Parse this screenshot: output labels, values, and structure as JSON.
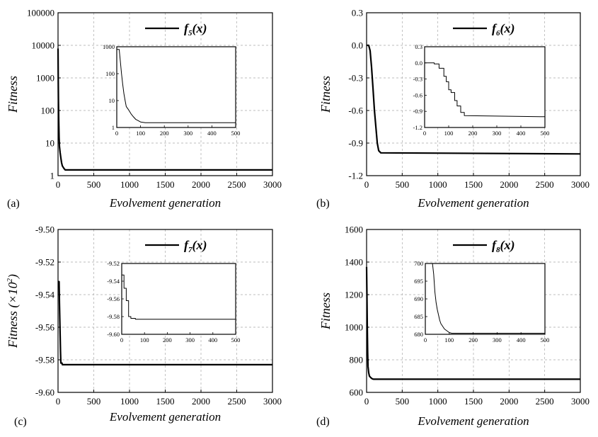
{
  "chart_data": [
    {
      "id": "a",
      "type": "line",
      "panel_label": "(a)",
      "xlabel": "Evolvement generation",
      "ylabel": "Fitness",
      "ylabel_sup": "",
      "ylabel_tail": "",
      "legend": {
        "base": "f",
        "sub": "5",
        "tail": "(x)",
        "position": "top-right"
      },
      "yscale": "log",
      "xlim": [
        0,
        3000
      ],
      "ylim": [
        1,
        100000
      ],
      "xticks": [
        0,
        500,
        1000,
        1500,
        2000,
        2500,
        3000
      ],
      "yticks": [
        1,
        10,
        100,
        1000,
        10000,
        100000
      ],
      "ytick_labels": [
        "1",
        "10",
        "100",
        "1000",
        "10000",
        "100000"
      ],
      "grid": true,
      "series": [
        {
          "x": [
            0,
            3,
            6,
            10,
            15,
            20,
            30,
            40,
            50,
            60,
            80,
            100,
            150,
            3000
          ],
          "y": [
            8000,
            1000,
            200,
            50,
            15,
            8,
            5,
            3.5,
            2.5,
            2,
            1.7,
            1.5,
            1.5,
            1.5
          ]
        }
      ],
      "inset": {
        "xlim": [
          0,
          500
        ],
        "ylim": [
          1,
          1000
        ],
        "yscale": "log",
        "xticks": [
          0,
          100,
          200,
          300,
          400,
          500
        ],
        "yticks": [
          1,
          10,
          100,
          1000
        ],
        "ytick_labels": [
          "1",
          "10",
          "100",
          "1000"
        ],
        "series": [
          {
            "x": [
              0,
              10,
              15,
              20,
              25,
              30,
              35,
              40,
              50,
              60,
              70,
              80,
              90,
              100,
              120,
              500
            ],
            "y": [
              800,
              800,
              300,
              100,
              40,
              18,
              10,
              6,
              4.5,
              3.2,
              2.5,
              2,
              1.8,
              1.6,
              1.5,
              1.5
            ]
          }
        ]
      }
    },
    {
      "id": "b",
      "type": "line",
      "panel_label": "(b)",
      "xlabel": "Evolvement generation",
      "ylabel": "Fitness",
      "ylabel_sup": "",
      "ylabel_tail": "",
      "legend": {
        "base": "f",
        "sub": "6",
        "tail": "(x)",
        "position": "top-right"
      },
      "yscale": "linear",
      "xlim": [
        0,
        3000
      ],
      "ylim": [
        -1.2,
        0.3
      ],
      "xticks": [
        0,
        500,
        1000,
        1500,
        2000,
        2500,
        3000
      ],
      "yticks": [
        -1.2,
        -0.9,
        -0.6,
        -0.3,
        0.0,
        0.3
      ],
      "ytick_labels": [
        "-1.2",
        "-0.9",
        "-0.6",
        "-0.3",
        "0.0",
        "0.3"
      ],
      "grid": true,
      "series": [
        {
          "x": [
            0,
            30,
            50,
            70,
            90,
            110,
            130,
            150,
            170,
            200,
            3000
          ],
          "y": [
            0,
            0,
            -0.05,
            -0.2,
            -0.4,
            -0.6,
            -0.75,
            -0.9,
            -0.97,
            -0.99,
            -1.0
          ]
        }
      ],
      "inset": {
        "xlim": [
          0,
          500
        ],
        "ylim": [
          -1.2,
          0.3
        ],
        "yscale": "linear",
        "xticks": [
          0,
          100,
          200,
          300,
          400,
          500
        ],
        "yticks": [
          -1.2,
          -0.9,
          -0.6,
          -0.3,
          0.0,
          0.3
        ],
        "ytick_labels": [
          "-1.2",
          "-0.9",
          "-0.6",
          "-0.3",
          "0.0",
          "0.3"
        ],
        "series": [
          {
            "x": [
              0,
              40,
              40,
              60,
              60,
              80,
              80,
              90,
              90,
              100,
              100,
              110,
              110,
              125,
              125,
              135,
              135,
              150,
              150,
              165,
              165,
              500
            ],
            "y": [
              0,
              0,
              -0.02,
              -0.02,
              -0.1,
              -0.1,
              -0.25,
              -0.25,
              -0.35,
              -0.35,
              -0.5,
              -0.5,
              -0.55,
              -0.55,
              -0.7,
              -0.7,
              -0.8,
              -0.8,
              -0.92,
              -0.92,
              -0.98,
              -1.0
            ]
          }
        ]
      }
    },
    {
      "id": "c",
      "type": "line",
      "panel_label": "(c)",
      "xlabel": "Evolvement generation",
      "ylabel": "Fitness (×10",
      "ylabel_sup": "2",
      "ylabel_tail": ")",
      "legend": {
        "base": "f",
        "sub": "7",
        "tail": "(x)",
        "position": "top-right"
      },
      "yscale": "linear",
      "xlim": [
        0,
        3000
      ],
      "ylim": [
        -9.6,
        -9.5
      ],
      "xticks": [
        0,
        500,
        1000,
        1500,
        2000,
        2500,
        3000
      ],
      "yticks": [
        -9.6,
        -9.58,
        -9.56,
        -9.54,
        -9.52,
        -9.5
      ],
      "ytick_labels": [
        "-9.60",
        "-9.58",
        "-9.56",
        "-9.54",
        "-9.52",
        "-9.50"
      ],
      "grid": true,
      "series": [
        {
          "x": [
            0,
            15,
            20,
            25,
            30,
            35,
            40,
            55,
            60,
            3000
          ],
          "y": [
            -9.532,
            -9.532,
            -9.545,
            -9.555,
            -9.565,
            -9.575,
            -9.582,
            -9.582,
            -9.583,
            -9.583
          ]
        }
      ],
      "inset": {
        "xlim": [
          0,
          500
        ],
        "ylim": [
          -9.6,
          -9.52
        ],
        "yscale": "linear",
        "xticks": [
          0,
          100,
          200,
          300,
          400,
          500
        ],
        "yticks": [
          -9.6,
          -9.58,
          -9.56,
          -9.54,
          -9.52
        ],
        "ytick_labels": [
          "-9.60",
          "-9.58",
          "-9.56",
          "-9.54",
          "-9.52"
        ],
        "series": [
          {
            "x": [
              0,
              10,
              10,
              20,
              20,
              30,
              30,
              40,
              40,
              60,
              60,
              500
            ],
            "y": [
              -9.533,
              -9.533,
              -9.548,
              -9.548,
              -9.562,
              -9.562,
              -9.58,
              -9.58,
              -9.582,
              -9.582,
              -9.583,
              -9.583
            ]
          }
        ]
      }
    },
    {
      "id": "d",
      "type": "line",
      "panel_label": "(d)",
      "xlabel": "Evolvement generation",
      "ylabel": "Fitness",
      "ylabel_sup": "",
      "ylabel_tail": "",
      "legend": {
        "base": "f",
        "sub": "8",
        "tail": "(x)",
        "position": "top-right"
      },
      "yscale": "linear",
      "xlim": [
        0,
        3000
      ],
      "ylim": [
        600,
        1600
      ],
      "xticks": [
        0,
        500,
        1000,
        1500,
        2000,
        2500,
        3000
      ],
      "yticks": [
        600,
        800,
        1000,
        1200,
        1400,
        1600
      ],
      "ytick_labels": [
        "600",
        "800",
        "1000",
        "1200",
        "1400",
        "1600"
      ],
      "grid": true,
      "series": [
        {
          "x": [
            0,
            5,
            10,
            15,
            20,
            30,
            40,
            60,
            80,
            100,
            3000
          ],
          "y": [
            1370,
            1200,
            1000,
            850,
            760,
            720,
            700,
            690,
            683,
            681,
            681
          ]
        }
      ],
      "inset": {
        "xlim": [
          0,
          500
        ],
        "ylim": [
          680,
          700
        ],
        "yscale": "linear",
        "xticks": [
          0,
          100,
          200,
          300,
          400,
          500
        ],
        "yticks": [
          680,
          685,
          690,
          695,
          700
        ],
        "ytick_labels": [
          "680",
          "685",
          "690",
          "695",
          "700"
        ],
        "series": [
          {
            "x": [
              30,
              35,
              40,
              45,
              50,
              55,
              60,
              65,
              70,
              80,
              90,
              100,
              110,
              500
            ],
            "y": [
              700,
              697,
              692,
              689,
              687,
              685.5,
              684,
              683,
              682.5,
              681.5,
              681,
              680.5,
              680.3,
              680.3
            ]
          }
        ]
      }
    }
  ]
}
